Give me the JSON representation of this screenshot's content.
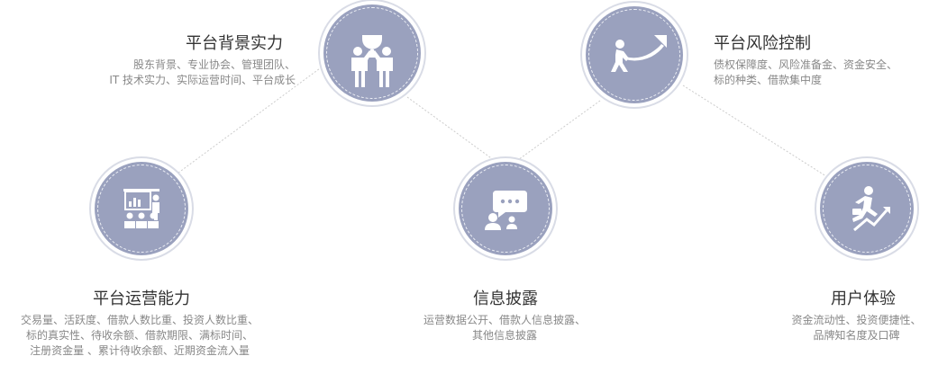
{
  "nodes": {
    "background": {
      "title": "平台背景实力",
      "lines": [
        "股东背景、专业协会、管理团队、",
        "IT 技术实力、实际运营时间、平台成长"
      ]
    },
    "risk": {
      "title": "平台风险控制",
      "lines": [
        "债权保障度、风险准备金、资金安全、",
        "标的种类、借款集中度"
      ]
    },
    "operation": {
      "title": "平台运营能力",
      "lines": [
        "交易量、活跃度、借款人数比重、投资人数比重、",
        "标的真实性、待收余额、借款期限、满标时间、",
        "注册资金量 、累计待收余额、近期资金流入量"
      ]
    },
    "disclosure": {
      "title": "信息披露",
      "lines": [
        "运营数据公开、借款人信息披露、",
        "其他信息披露"
      ]
    },
    "experience": {
      "title": "用户体验",
      "lines": [
        "资金流动性、投资便捷性、",
        "品牌知名度及口碑"
      ]
    }
  },
  "colors": {
    "node_fill": "#9aa1be",
    "title": "#333333",
    "desc": "#888888",
    "connector": "#cccccc"
  },
  "icons": {
    "background": "trophy-handshake-icon",
    "risk": "tug-of-war-arrow-icon",
    "operation": "presentation-audience-icon",
    "disclosure": "chat-bubble-user-icon",
    "experience": "runner-briefcase-arrow-icon"
  }
}
